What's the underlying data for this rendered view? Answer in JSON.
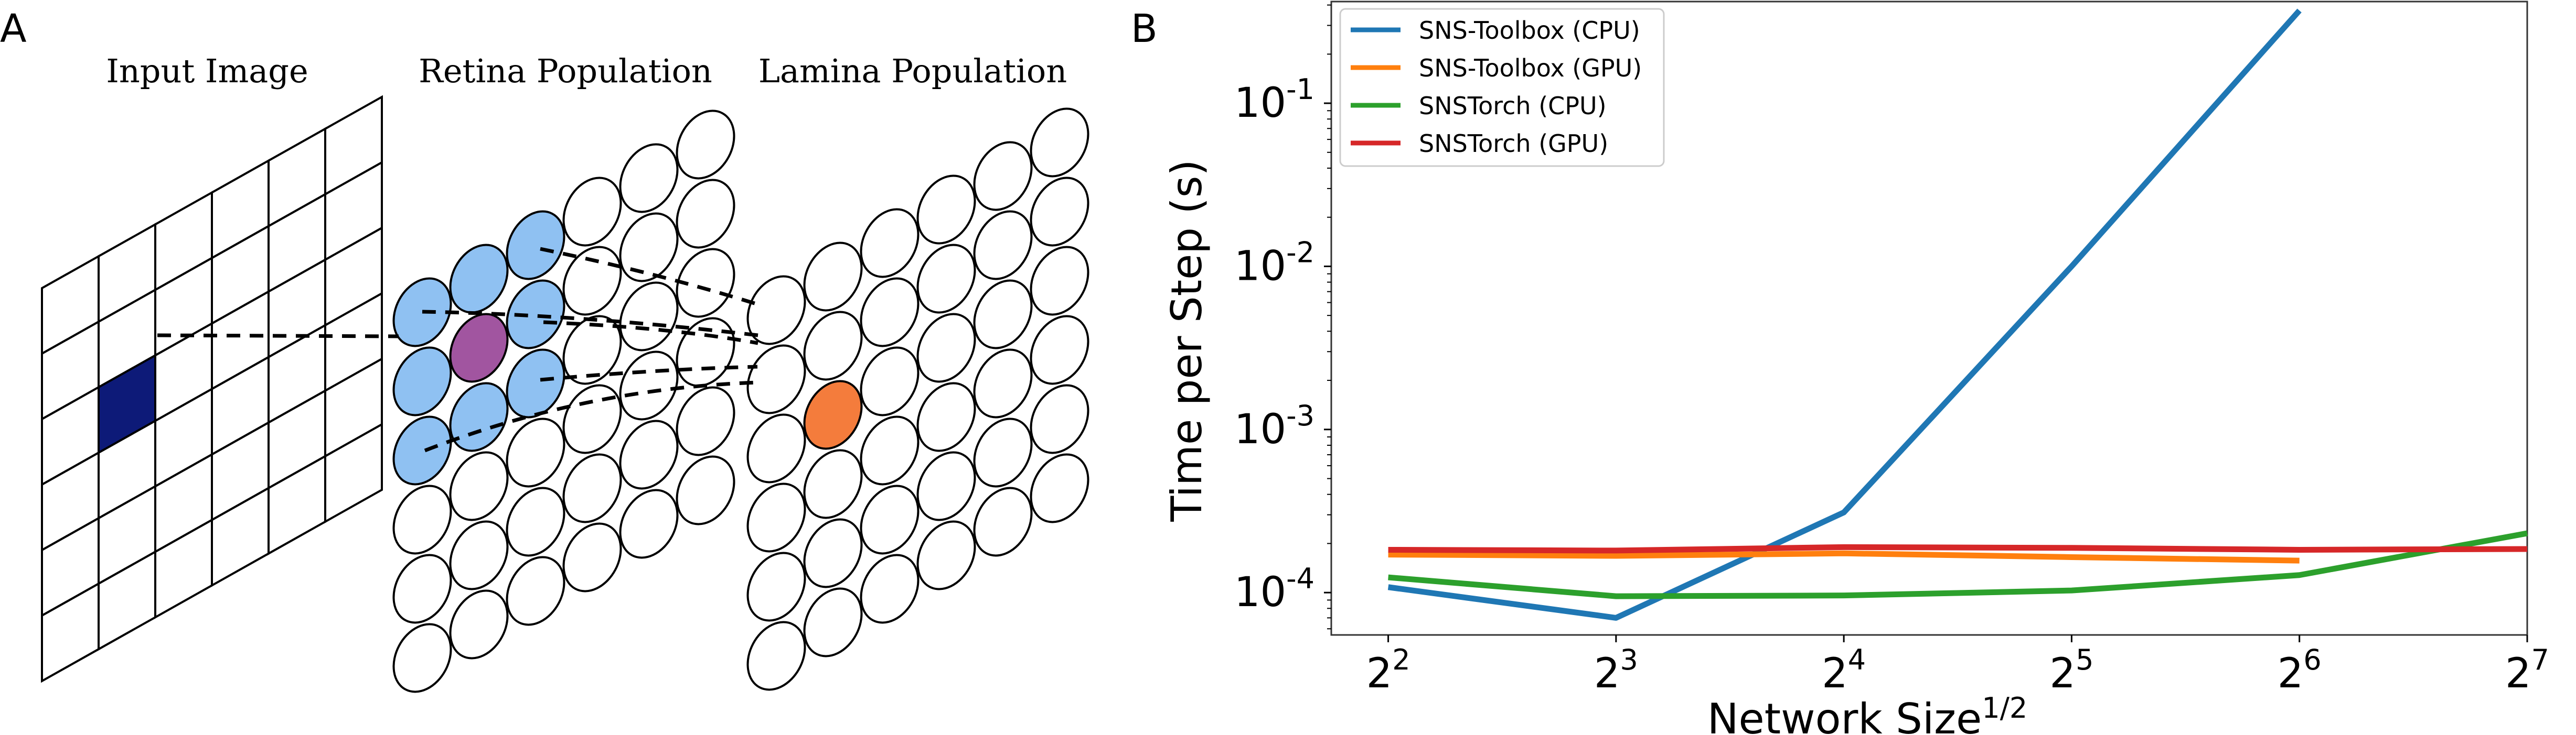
{
  "panel_a": {
    "label": "A",
    "titles": {
      "input": "Input Image",
      "retina": "Retina Population",
      "lamina": "Lamina Population"
    },
    "colors": {
      "selected_pixel": "#0d1a78",
      "retina_neighbors": "#8fc1f2",
      "retina_center": "#a155a0",
      "lamina_target": "#f47c3c",
      "cell_outline": "#000000"
    },
    "grid": {
      "rows": 6,
      "cols": 6,
      "selected_cell": [
        1,
        2
      ]
    }
  },
  "panel_b": {
    "label": "B"
  },
  "chart_data": {
    "type": "line",
    "title": "",
    "xlabel": "Network Size",
    "xlabel_superscript": "1/2",
    "ylabel": "Time per Step (s)",
    "x_scale": "log2",
    "y_scale": "log10",
    "xlim_exponents": [
      1.75,
      7.0
    ],
    "ylim": [
      5.5e-05,
      0.42
    ],
    "x_ticks": [
      {
        "base": "2",
        "exp": "2",
        "value": 4
      },
      {
        "base": "2",
        "exp": "3",
        "value": 8
      },
      {
        "base": "2",
        "exp": "4",
        "value": 16
      },
      {
        "base": "2",
        "exp": "5",
        "value": 32
      },
      {
        "base": "2",
        "exp": "6",
        "value": 64
      },
      {
        "base": "2",
        "exp": "7",
        "value": 128
      }
    ],
    "y_ticks": [
      {
        "base": "10",
        "exp": "-1",
        "value": 0.1
      },
      {
        "base": "10",
        "exp": "-2",
        "value": 0.01
      },
      {
        "base": "10",
        "exp": "-3",
        "value": 0.001
      },
      {
        "base": "10",
        "exp": "-4",
        "value": 0.0001
      }
    ],
    "grid": false,
    "legend_position": "top-left",
    "series": [
      {
        "name": "SNS-Toolbox (CPU)",
        "color": "#1f77b4",
        "x": [
          4,
          8,
          16,
          32,
          64
        ],
        "y": [
          0.000108,
          7e-05,
          0.00031,
          0.01,
          0.37
        ]
      },
      {
        "name": "SNS-Toolbox (GPU)",
        "color": "#ff7f0e",
        "x": [
          4,
          8,
          16,
          32,
          64
        ],
        "y": [
          0.000171,
          0.000168,
          0.000174,
          0.000165,
          0.000157
        ]
      },
      {
        "name": "SNSTorch (CPU)",
        "color": "#2ca02c",
        "x": [
          4,
          8,
          16,
          32,
          64,
          128
        ],
        "y": [
          0.000124,
          9.5e-05,
          9.6e-05,
          0.000103,
          0.000128,
          0.000231
        ]
      },
      {
        "name": "SNSTorch (GPU)",
        "color": "#d62728",
        "x": [
          4,
          8,
          16,
          32,
          64,
          128
        ],
        "y": [
          0.000183,
          0.000181,
          0.00019,
          0.000188,
          0.000183,
          0.000185
        ]
      }
    ]
  }
}
